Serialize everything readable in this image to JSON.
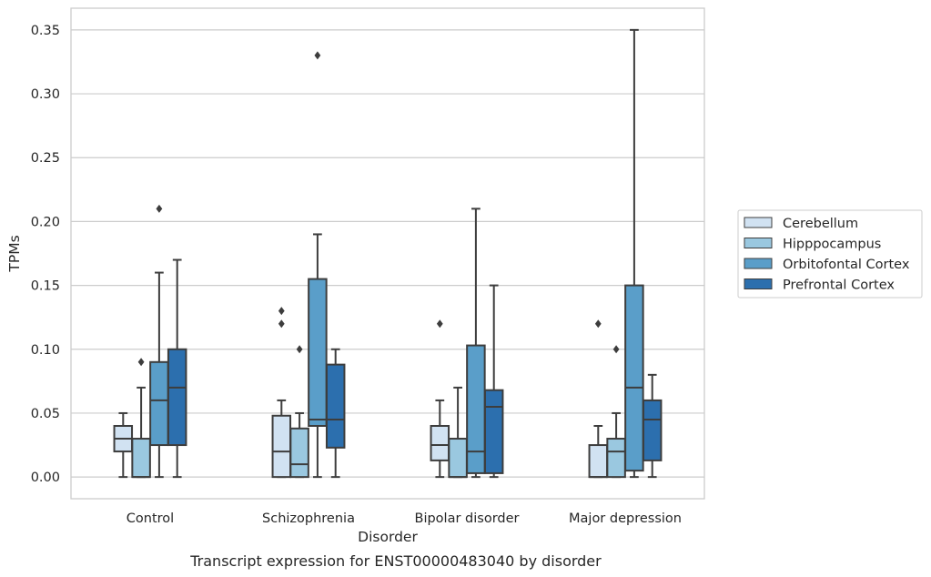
{
  "chart_data": {
    "type": "box",
    "caption": "Transcript expression for ENST00000483040 by disorder",
    "xlabel": "Disorder",
    "ylabel": "TPMs",
    "ylim": [
      -0.017,
      0.367
    ],
    "yticks": [
      0.0,
      0.05,
      0.1,
      0.15,
      0.2,
      0.25,
      0.3,
      0.35
    ],
    "ytick_labels": [
      "0.00",
      "0.05",
      "0.10",
      "0.15",
      "0.20",
      "0.25",
      "0.30",
      "0.35"
    ],
    "grid": true,
    "legend_position": "right",
    "categories": [
      "Control",
      "Schizophrenia",
      "Bipolar disorder",
      "Major depression"
    ],
    "series": [
      {
        "name": "Cerebellum",
        "color": "#d1e2f2",
        "boxes": [
          {
            "whislo": 0.0,
            "q1": 0.02,
            "med": 0.03,
            "q3": 0.04,
            "whishi": 0.05,
            "fliers": []
          },
          {
            "whislo": 0.0,
            "q1": 0.0,
            "med": 0.02,
            "q3": 0.048,
            "whishi": 0.06,
            "fliers": [
              0.12,
              0.13
            ]
          },
          {
            "whislo": 0.0,
            "q1": 0.013,
            "med": 0.025,
            "q3": 0.04,
            "whishi": 0.06,
            "fliers": [
              0.12
            ]
          },
          {
            "whislo": 0.0,
            "q1": 0.0,
            "med": 0.0,
            "q3": 0.025,
            "whishi": 0.04,
            "fliers": [
              0.12
            ]
          }
        ]
      },
      {
        "name": "Hipppocampus",
        "color": "#9ac8e0",
        "boxes": [
          {
            "whislo": 0.0,
            "q1": 0.0,
            "med": 0.0,
            "q3": 0.03,
            "whishi": 0.07,
            "fliers": [
              0.09
            ]
          },
          {
            "whislo": 0.0,
            "q1": 0.0,
            "med": 0.01,
            "q3": 0.038,
            "whishi": 0.05,
            "fliers": [
              0.1
            ]
          },
          {
            "whislo": 0.0,
            "q1": 0.0,
            "med": 0.0,
            "q3": 0.03,
            "whishi": 0.07,
            "fliers": []
          },
          {
            "whislo": 0.0,
            "q1": 0.0,
            "med": 0.02,
            "q3": 0.03,
            "whishi": 0.05,
            "fliers": [
              0.1
            ]
          }
        ]
      },
      {
        "name": "Orbitofontal Cortex",
        "color": "#5a9ec9",
        "boxes": [
          {
            "whislo": 0.0,
            "q1": 0.025,
            "med": 0.06,
            "q3": 0.09,
            "whishi": 0.16,
            "fliers": [
              0.21
            ]
          },
          {
            "whislo": 0.0,
            "q1": 0.04,
            "med": 0.045,
            "q3": 0.155,
            "whishi": 0.19,
            "fliers": [
              0.33
            ]
          },
          {
            "whislo": 0.0,
            "q1": 0.003,
            "med": 0.02,
            "q3": 0.103,
            "whishi": 0.21,
            "fliers": []
          },
          {
            "whislo": 0.0,
            "q1": 0.005,
            "med": 0.07,
            "q3": 0.15,
            "whishi": 0.35,
            "fliers": []
          }
        ]
      },
      {
        "name": "Prefrontal Cortex",
        "color": "#2c6fae",
        "boxes": [
          {
            "whislo": 0.0,
            "q1": 0.025,
            "med": 0.07,
            "q3": 0.1,
            "whishi": 0.17,
            "fliers": []
          },
          {
            "whislo": 0.0,
            "q1": 0.023,
            "med": 0.045,
            "q3": 0.088,
            "whishi": 0.1,
            "fliers": []
          },
          {
            "whislo": 0.0,
            "q1": 0.003,
            "med": 0.055,
            "q3": 0.068,
            "whishi": 0.15,
            "fliers": []
          },
          {
            "whislo": 0.0,
            "q1": 0.013,
            "med": 0.045,
            "q3": 0.06,
            "whishi": 0.08,
            "fliers": []
          }
        ]
      }
    ]
  }
}
